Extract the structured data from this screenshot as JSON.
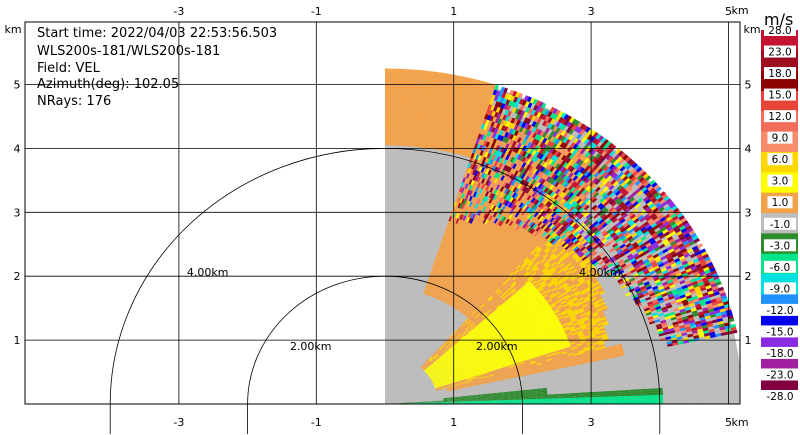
{
  "info": {
    "start_time": "Start time: 2022/04/03 22:53:56.503",
    "instrument": "WLS200s-181/WLS200s-181",
    "field": "Field: VEL",
    "azimuth": "Azimuth(deg): 102.05",
    "nrays": "NRays: 176"
  },
  "colorbar": {
    "unit": "m/s",
    "labels": [
      "28.0",
      "23.0",
      "18.0",
      "15.0",
      "12.0",
      "9.0",
      "6.0",
      "3.0",
      "1.0",
      "-1.0",
      "-3.0",
      "-6.0",
      "-9.0",
      "-12.0",
      "-15.0",
      "-18.0",
      "-23.0",
      "-28.0"
    ],
    "colors": [
      "#c41230",
      "#9e0e20",
      "#8b0000",
      "#e8443a",
      "#f46d5a",
      "#fb8c6b",
      "#ffd700",
      "#ffff00",
      "#f3a24a",
      "#bdbdbd",
      "#2e8b2e",
      "#00e58a",
      "#00e0e0",
      "#1e90ff",
      "#0000ee",
      "#8a2be2",
      "#a020a0",
      "#800040"
    ]
  },
  "chart_data": {
    "type": "heatmap",
    "description_field": "VEL",
    "x_axis": {
      "unit": "km",
      "ticks": [
        -3,
        -1,
        1,
        3,
        5
      ],
      "range": [
        -4.9,
        5.4
      ]
    },
    "y_axis": {
      "unit": "km",
      "ticks": [
        1,
        2,
        3,
        4,
        5
      ],
      "range": [
        0,
        5.2
      ]
    },
    "range_rings": [
      {
        "radius_km": 2.0,
        "label": "2.00km"
      },
      {
        "radius_km": 4.0,
        "label": "4.00km"
      }
    ],
    "sector": {
      "origin_km": [
        0,
        0
      ],
      "max_range_km": 5.2,
      "angle_from_deg": 0,
      "angle_to_deg": 90
    },
    "colorbar_range": [
      -28.0,
      28.0
    ],
    "colorbar_unit": "m/s"
  }
}
